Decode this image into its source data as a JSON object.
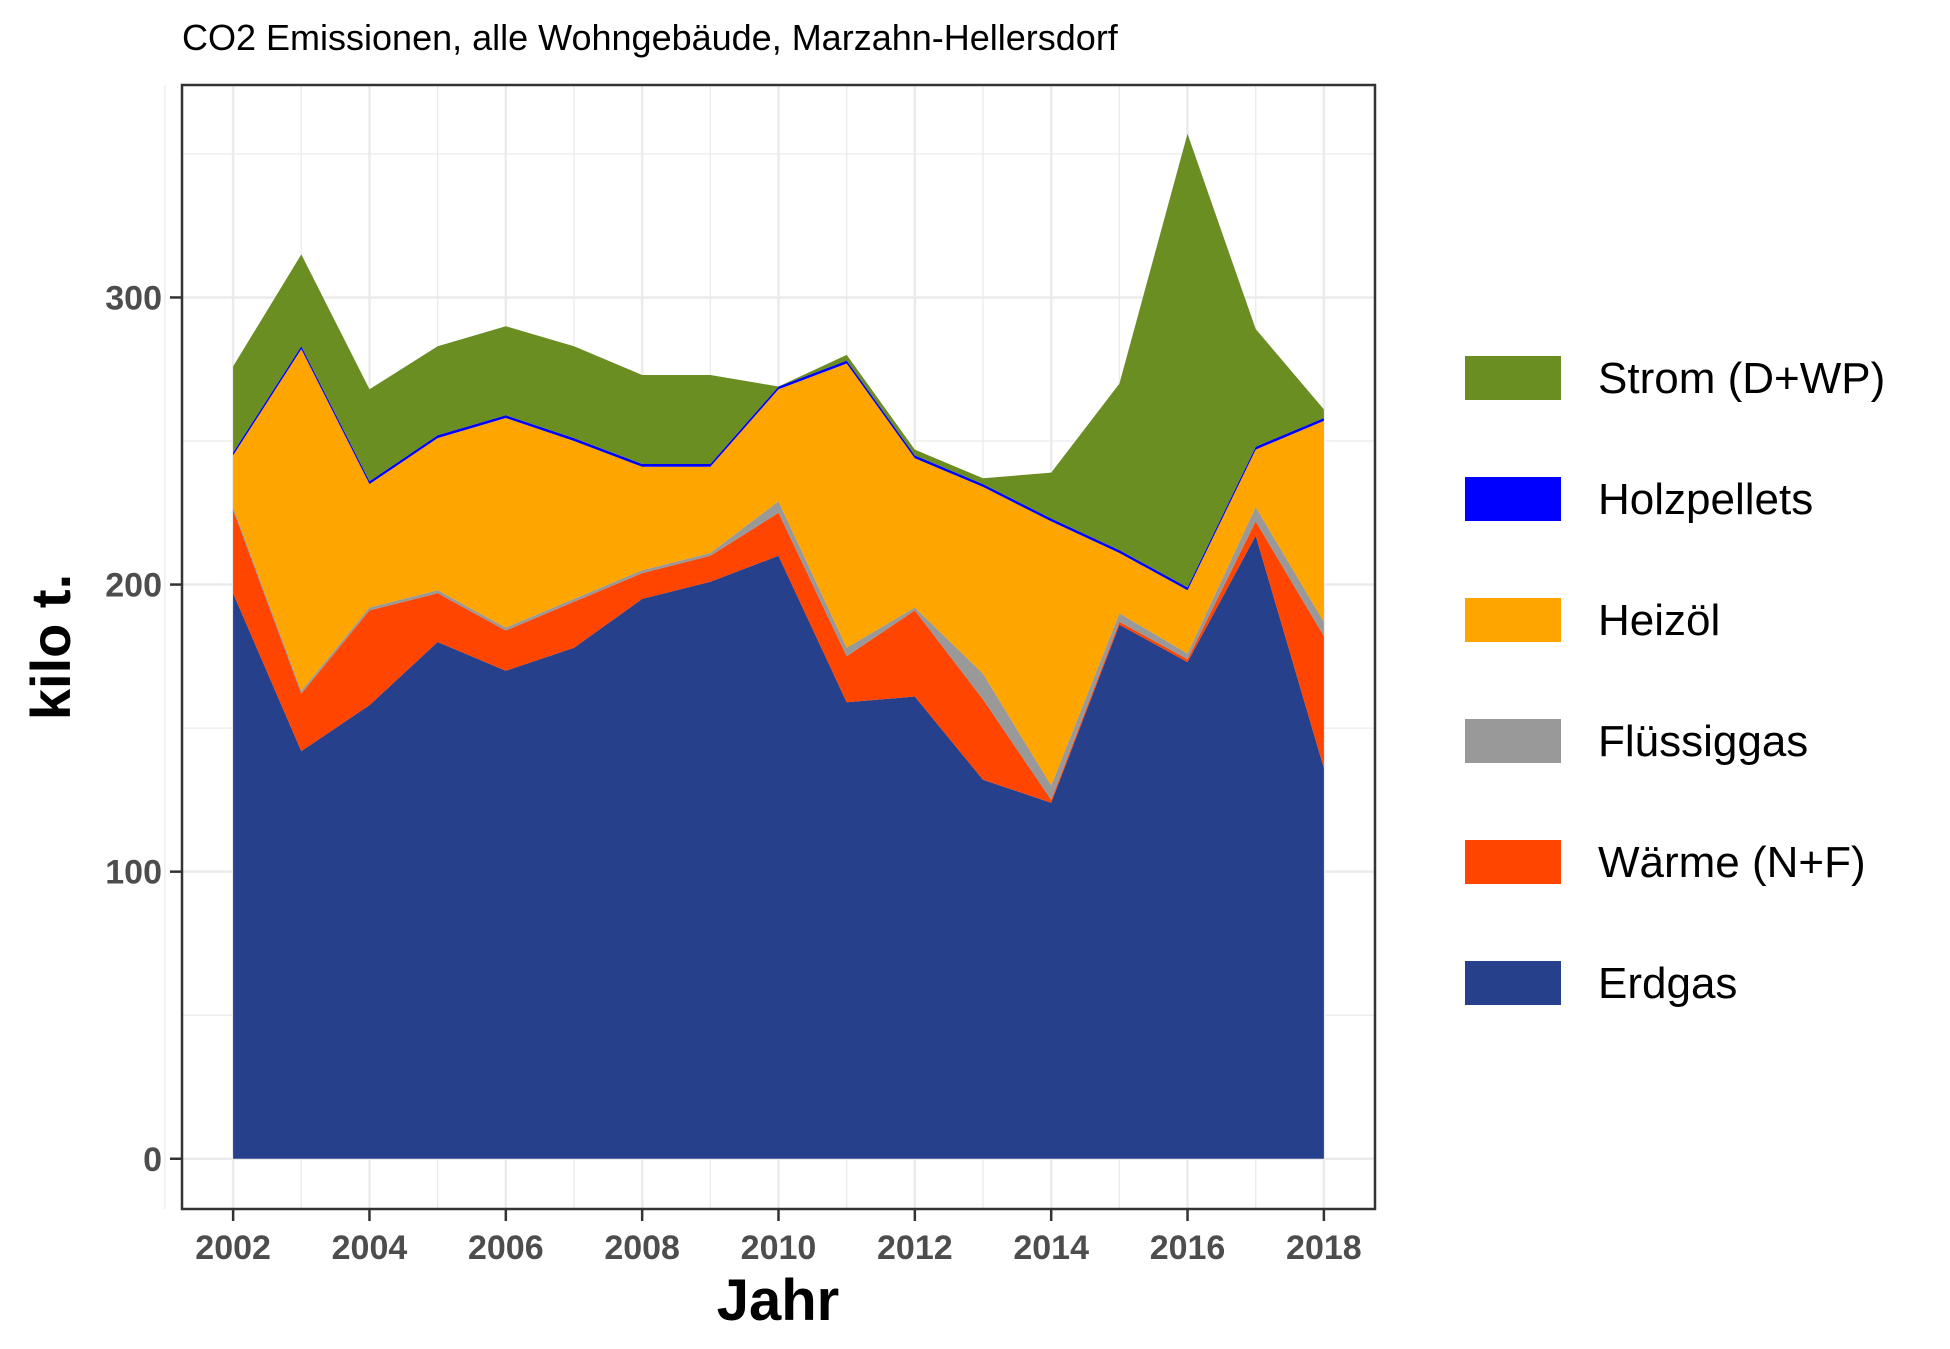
{
  "chart_data": {
    "type": "area",
    "stacked": true,
    "title": "CO2 Emissionen, alle Wohngebäude, Marzahn-Hellersdorf",
    "xlabel": "Jahr",
    "ylabel": "kilo t.",
    "x": [
      2002,
      2003,
      2004,
      2005,
      2006,
      2007,
      2008,
      2009,
      2010,
      2011,
      2012,
      2013,
      2014,
      2015,
      2016,
      2017,
      2018
    ],
    "xlim": [
      2001.25,
      2018.75
    ],
    "ylim": [
      -17.5,
      374
    ],
    "x_ticks": [
      "2002",
      "2004",
      "2006",
      "2008",
      "2010",
      "2012",
      "2014",
      "2016",
      "2018"
    ],
    "y_ticks": [
      "0",
      "100",
      "200",
      "300"
    ],
    "grid": true,
    "legend_position": "right",
    "series": [
      {
        "name": "Erdgas",
        "color": "#27408b",
        "values": [
          197,
          142,
          158,
          180,
          170,
          178,
          195,
          201,
          210,
          159,
          161,
          132,
          124,
          186,
          173,
          217,
          136
        ]
      },
      {
        "name": "Wärme (N+F)",
        "color": "#ff4500",
        "values": [
          29,
          20,
          33,
          17,
          14,
          16,
          9,
          9,
          15,
          16,
          30,
          28,
          1,
          1,
          1,
          5,
          46
        ]
      },
      {
        "name": "Flüssiggas",
        "color": "#999999",
        "values": [
          1,
          1,
          1,
          1,
          1,
          1,
          1,
          1,
          4,
          3,
          1,
          9,
          5,
          3,
          2,
          5,
          5
        ]
      },
      {
        "name": "Heizöl",
        "color": "#ffa500",
        "values": [
          18,
          119,
          43,
          53,
          73,
          55,
          36,
          30,
          39,
          99,
          52,
          65,
          92,
          21,
          22,
          20,
          70
        ]
      },
      {
        "name": "Holzpellets",
        "color": "#0000ff",
        "values": [
          1,
          1,
          1,
          1,
          1,
          1,
          1,
          1,
          1,
          1,
          1,
          1,
          1,
          1,
          1,
          1,
          1
        ]
      },
      {
        "name": "Strom (D+WP)",
        "color": "#6b8e23",
        "values": [
          30,
          32,
          32,
          31,
          31,
          32,
          31,
          31,
          0,
          2,
          2,
          2,
          16,
          58,
          158,
          41,
          3
        ]
      }
    ],
    "legend_order": [
      "Strom (D+WP)",
      "Holzpellets",
      "Heizöl",
      "Flüssiggas",
      "Wärme (N+F)",
      "Erdgas"
    ]
  }
}
